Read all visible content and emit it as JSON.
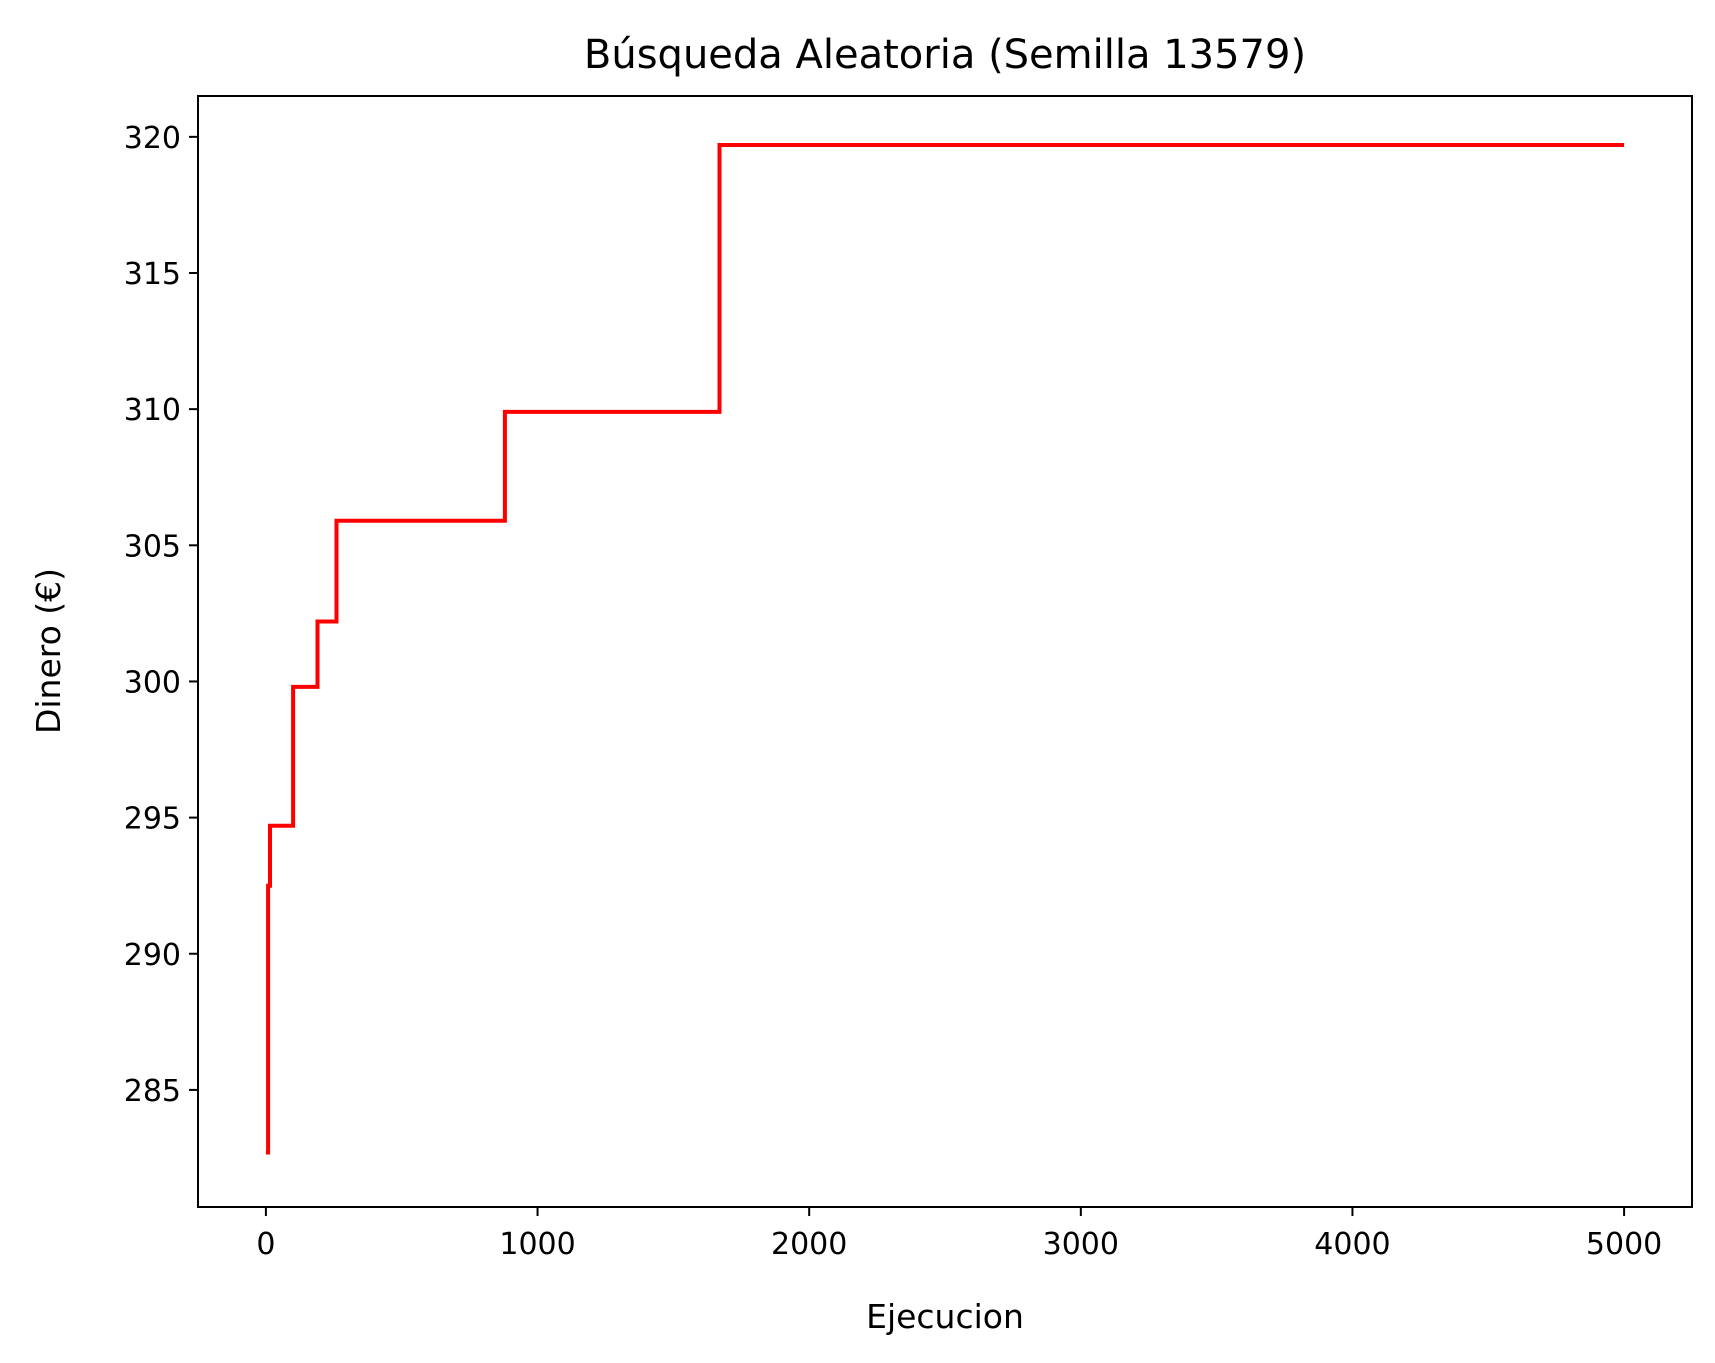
{
  "chart_data": {
    "type": "line",
    "title": "Búsqueda Aleatoria (Semilla 13579)",
    "xlabel": "Ejecucion",
    "ylabel": "Dinero (€)",
    "xlim": [
      -250,
      5250
    ],
    "ylim": [
      280.7,
      321.5
    ],
    "xticks": [
      0,
      1000,
      2000,
      3000,
      4000,
      5000
    ],
    "xtick_labels": [
      "0",
      "1000",
      "2000",
      "3000",
      "4000",
      "5000"
    ],
    "yticks": [
      285,
      290,
      295,
      300,
      305,
      310,
      315,
      320
    ],
    "ytick_labels": [
      "285",
      "290",
      "295",
      "300",
      "305",
      "310",
      "315",
      "320"
    ],
    "grid": false,
    "legend": "none",
    "line_color": "#ff0000",
    "series": [
      {
        "step": "post",
        "x": [
          0,
          8,
          15,
          100,
          190,
          260,
          880,
          1670,
          5000
        ],
        "y": [
          282.7,
          292.5,
          294.7,
          299.8,
          302.2,
          305.9,
          309.9,
          319.7,
          319.7
        ]
      }
    ]
  }
}
